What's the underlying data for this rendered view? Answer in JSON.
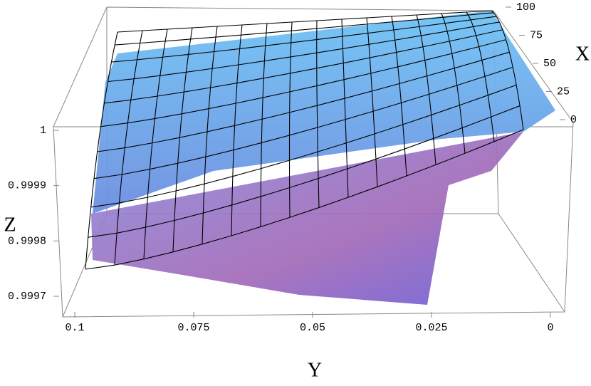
{
  "chart_data": {
    "type": "surface3d",
    "x_label": "X",
    "y_label": "Y",
    "z_label": "Z",
    "xlim": [
      0,
      100
    ],
    "xticks": [
      0,
      25,
      50,
      75,
      100
    ],
    "ylim": [
      0,
      0.1
    ],
    "yticks": [
      0.1,
      0.075,
      0.05,
      0.025,
      0
    ],
    "zlim": [
      0.9997,
      1
    ],
    "zticks": [
      1,
      0.9999,
      0.9998,
      0.9997
    ]
  }
}
